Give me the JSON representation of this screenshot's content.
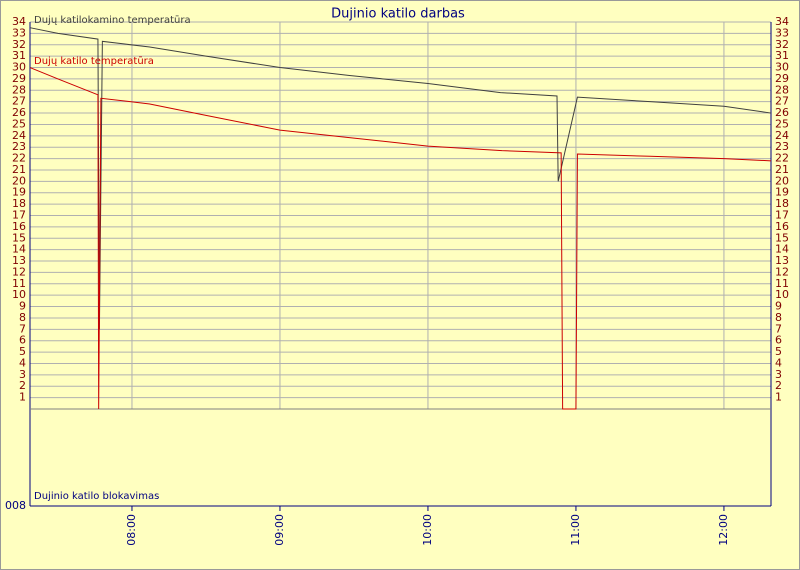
{
  "chart_data": {
    "type": "line",
    "title": "Dujinio katilo darbas",
    "series": [
      {
        "name": "Dujų katilokamino temperatūra",
        "color": "#404040",
        "x": [
          7.311,
          7.5,
          7.77,
          7.78,
          7.8,
          8.12,
          8.5,
          9.0,
          9.47,
          10.0,
          10.49,
          10.872,
          10.88,
          11.01,
          11.5,
          12.0,
          12.318
        ],
        "values": [
          33.5,
          33.0,
          32.5,
          7,
          32.3,
          31.8,
          31.0,
          30.0,
          29.3,
          28.6,
          27.8,
          27.5,
          20,
          27.4,
          27.0,
          26.6,
          26.0
        ]
      },
      {
        "name": "Dujų katilo temperatūra",
        "color": "#cc0000",
        "x": [
          7.311,
          7.5,
          7.77,
          7.775,
          7.79,
          8.12,
          8.5,
          9.0,
          9.5,
          10.0,
          10.5,
          10.9,
          10.91,
          11.0,
          11.01,
          11.5,
          12.0,
          12.318
        ],
        "values": [
          30,
          29,
          27.6,
          0,
          27.3,
          26.8,
          25.8,
          24.5,
          23.8,
          23.1,
          22.7,
          22.5,
          0,
          0,
          22.4,
          22.2,
          22.0,
          21.8
        ]
      }
    ],
    "blocking_label": "Dujinio katilo blokavimas",
    "blocking_axis_label": "008",
    "xlim": [
      7.311,
      12.318
    ],
    "xticks": [
      {
        "value": 8,
        "label": "08:00"
      },
      {
        "value": 9,
        "label": "09:00"
      },
      {
        "value": 10,
        "label": "10:00"
      },
      {
        "value": 11,
        "label": "11:00"
      },
      {
        "value": 12,
        "label": "12:00"
      }
    ],
    "ylim": [
      0,
      34
    ],
    "yticks": [
      1,
      2,
      3,
      4,
      5,
      6,
      7,
      8,
      9,
      10,
      11,
      12,
      13,
      14,
      15,
      16,
      17,
      18,
      19,
      20,
      21,
      22,
      23,
      24,
      25,
      26,
      27,
      28,
      29,
      30,
      31,
      32,
      33,
      34
    ],
    "grid": true
  }
}
